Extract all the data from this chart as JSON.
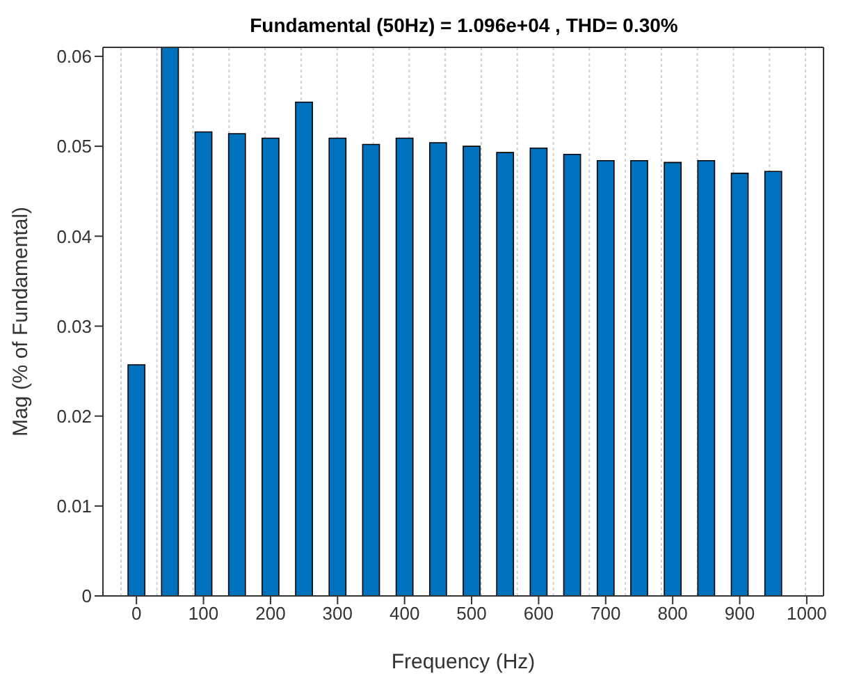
{
  "chart_data": {
    "type": "bar",
    "title": "Fundamental (50Hz) = 1.096e+04 , THD= 0.30%",
    "xlabel": "Frequency (Hz)",
    "ylabel": "Mag (% of Fundamental)",
    "x": [
      0,
      50,
      100,
      150,
      200,
      250,
      300,
      350,
      400,
      450,
      500,
      550,
      600,
      650,
      700,
      750,
      800,
      850,
      900,
      950
    ],
    "values": [
      0.0257,
      0.061,
      0.0516,
      0.0514,
      0.0509,
      0.0549,
      0.0509,
      0.0502,
      0.0509,
      0.0504,
      0.05,
      0.0493,
      0.0498,
      0.0491,
      0.0484,
      0.0484,
      0.0482,
      0.0484,
      0.047,
      0.0472
    ],
    "color": "#0072bd",
    "xlim": [
      -50,
      1025
    ],
    "xticks": [
      0,
      100,
      200,
      300,
      400,
      500,
      600,
      700,
      800,
      900,
      1000
    ],
    "ylim": [
      0,
      0.061
    ],
    "yticks": [
      0,
      0.01,
      0.02,
      0.03,
      0.04,
      0.05,
      0.06
    ],
    "grid": true
  }
}
